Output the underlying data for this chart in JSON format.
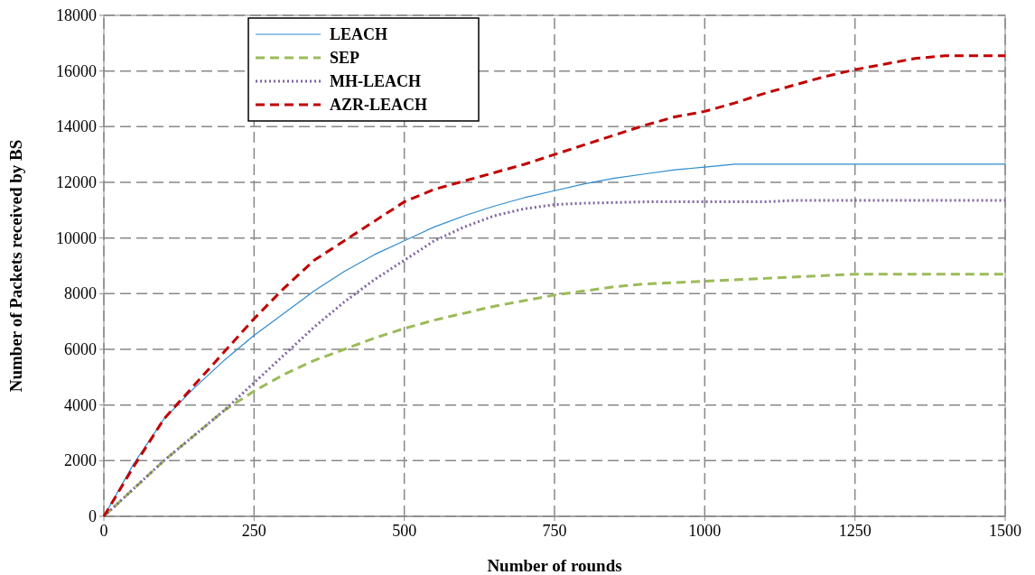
{
  "chart_data": {
    "type": "line",
    "xlabel": "Number of rounds",
    "ylabel": "Number of Packets received by BS",
    "xlim": [
      0,
      1500
    ],
    "xticks": [
      0,
      250,
      500,
      750,
      1000,
      1250,
      1500
    ],
    "ylim": [
      0,
      18000
    ],
    "yticks": [
      0,
      2000,
      4000,
      6000,
      8000,
      10000,
      12000,
      14000,
      16000,
      18000
    ],
    "grid": true,
    "legend": "top left",
    "series": [
      {
        "name": "LEACH",
        "color": "#2e8bd0",
        "line_style": "solid",
        "x": [
          0,
          50,
          100,
          150,
          200,
          250,
          300,
          350,
          400,
          450,
          500,
          550,
          600,
          650,
          700,
          750,
          800,
          850,
          900,
          950,
          1000,
          1050,
          1100,
          1500
        ],
        "values": [
          0,
          1900,
          3500,
          4600,
          5600,
          6500,
          7300,
          8100,
          8800,
          9400,
          9900,
          10400,
          10800,
          11150,
          11450,
          11700,
          11950,
          12150,
          12300,
          12450,
          12550,
          12650,
          12650,
          12650
        ]
      },
      {
        "name": "SEP",
        "color": "#9bbb59",
        "line_style": "dashed",
        "x": [
          0,
          50,
          100,
          150,
          200,
          250,
          300,
          350,
          400,
          450,
          500,
          550,
          600,
          650,
          700,
          750,
          800,
          850,
          900,
          1000,
          1100,
          1200,
          1250,
          1500
        ],
        "values": [
          0,
          1000,
          2000,
          2900,
          3800,
          4500,
          5100,
          5600,
          6000,
          6400,
          6750,
          7050,
          7300,
          7550,
          7750,
          7950,
          8100,
          8250,
          8350,
          8450,
          8550,
          8650,
          8700,
          8700
        ]
      },
      {
        "name": "MH-LEACH",
        "color": "#8064a2",
        "line_style": "dotted",
        "x": [
          0,
          50,
          100,
          150,
          200,
          250,
          300,
          350,
          400,
          450,
          500,
          550,
          600,
          650,
          700,
          750,
          800,
          900,
          1000,
          1100,
          1150,
          1500
        ],
        "values": [
          0,
          1000,
          2000,
          2900,
          3800,
          4800,
          5800,
          6800,
          7700,
          8500,
          9200,
          9900,
          10400,
          10800,
          11050,
          11200,
          11250,
          11300,
          11300,
          11300,
          11350,
          11350
        ]
      },
      {
        "name": "AZR-LEACH",
        "color": "#c00000",
        "line_style": "dashed",
        "x": [
          0,
          50,
          100,
          150,
          200,
          250,
          300,
          350,
          400,
          450,
          500,
          550,
          600,
          650,
          700,
          750,
          800,
          850,
          900,
          950,
          1000,
          1050,
          1100,
          1150,
          1200,
          1250,
          1300,
          1350,
          1400,
          1500
        ],
        "values": [
          0,
          1800,
          3500,
          4700,
          5900,
          7100,
          8200,
          9200,
          9900,
          10600,
          11300,
          11750,
          12050,
          12350,
          12650,
          13000,
          13350,
          13700,
          14050,
          14350,
          14550,
          14850,
          15200,
          15500,
          15800,
          16050,
          16250,
          16450,
          16550,
          16550
        ]
      }
    ]
  }
}
